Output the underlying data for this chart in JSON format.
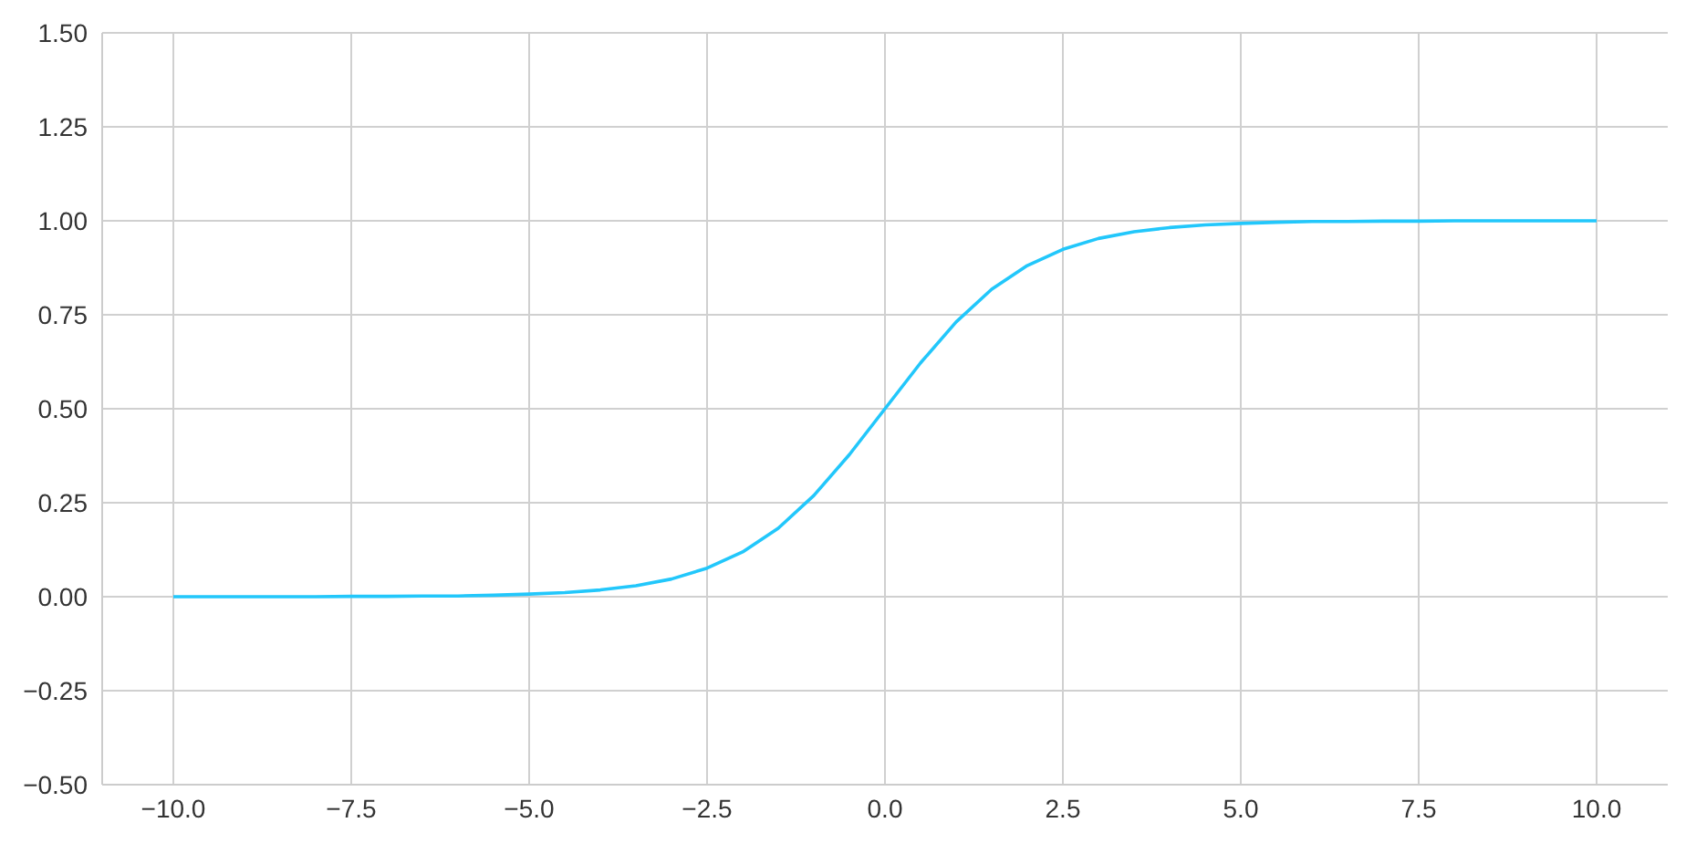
{
  "chart_data": {
    "type": "line",
    "x": [
      -10,
      -9.5,
      -9,
      -8.5,
      -8,
      -7.5,
      -7,
      -6.5,
      -6,
      -5.5,
      -5,
      -4.5,
      -4,
      -3.5,
      -3,
      -2.5,
      -2,
      -1.5,
      -1,
      -0.5,
      0,
      0.5,
      1,
      1.5,
      2,
      2.5,
      3,
      3.5,
      4,
      4.5,
      5,
      5.5,
      6,
      6.5,
      7,
      7.5,
      8,
      8.5,
      9,
      9.5,
      10
    ],
    "series": [
      {
        "color": "#22c7fb",
        "values": [
          0,
          0,
          0,
          0,
          0,
          0.001,
          0.001,
          0.002,
          0.002,
          0.004,
          0.007,
          0.011,
          0.018,
          0.029,
          0.047,
          0.076,
          0.119,
          0.182,
          0.269,
          0.378,
          0.5,
          0.622,
          0.731,
          0.818,
          0.881,
          0.924,
          0.953,
          0.971,
          0.982,
          0.989,
          0.993,
          0.996,
          0.998,
          0.998,
          0.999,
          0.999,
          1,
          1,
          1,
          1,
          1
        ]
      }
    ],
    "xlim": [
      -11,
      11
    ],
    "xticks": [
      {
        "value": -10,
        "label": "−10.0"
      },
      {
        "value": -7.5,
        "label": "−7.5"
      },
      {
        "value": -5,
        "label": "−5.0"
      },
      {
        "value": -2.5,
        "label": "−2.5"
      },
      {
        "value": 0,
        "label": "0.0"
      },
      {
        "value": 2.5,
        "label": "2.5"
      },
      {
        "value": 5,
        "label": "5.0"
      },
      {
        "value": 7.5,
        "label": "7.5"
      },
      {
        "value": 10,
        "label": "10.0"
      }
    ],
    "ylim": [
      -0.5,
      1.5
    ],
    "yticks": [
      {
        "value": -0.5,
        "label": "−0.50"
      },
      {
        "value": -0.25,
        "label": "−0.25"
      },
      {
        "value": 0,
        "label": "0.00"
      },
      {
        "value": 0.25,
        "label": "0.25"
      },
      {
        "value": 0.5,
        "label": "0.50"
      },
      {
        "value": 0.75,
        "label": "0.75"
      },
      {
        "value": 1,
        "label": "1.00"
      },
      {
        "value": 1.25,
        "label": "1.25"
      },
      {
        "value": 1.5,
        "label": "1.50"
      }
    ],
    "grid": true,
    "marker": "none",
    "line_style": "solid"
  }
}
